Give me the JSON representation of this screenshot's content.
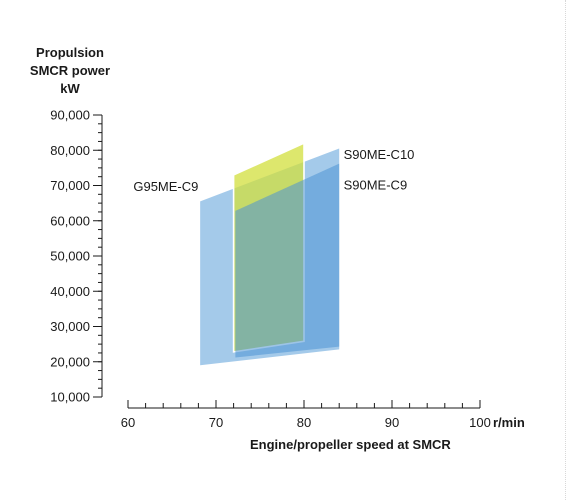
{
  "chart_data": {
    "type": "area",
    "ylabel_lines": [
      "Propulsion",
      "SMCR power",
      "kW"
    ],
    "xlabel": "Engine/propeller speed at SMCR",
    "x_unit": "r/min",
    "xlim": [
      60,
      100
    ],
    "ylim": [
      10000,
      90000
    ],
    "x_ticks": [
      60,
      70,
      80,
      90,
      100
    ],
    "x_tick_labels": [
      "60",
      "70",
      "80",
      "90",
      "100"
    ],
    "y_ticks": [
      10000,
      20000,
      30000,
      40000,
      50000,
      60000,
      70000,
      80000,
      90000
    ],
    "y_tick_labels": [
      "10,000",
      "20,000",
      "30,000",
      "40,000",
      "50,000",
      "60,000",
      "70,000",
      "80,000",
      "90,000"
    ],
    "y_minor_step": 2500,
    "grid": false,
    "series": [
      {
        "name": "G95ME-C9",
        "color": "#5a9fd8",
        "polygon": [
          [
            68.2,
            65500
          ],
          [
            84,
            80500
          ],
          [
            84,
            23500
          ],
          [
            68.2,
            19000
          ]
        ]
      },
      {
        "name": "S90ME-C10",
        "color": "#d2df3c",
        "polygon": [
          [
            72,
            73000
          ],
          [
            80,
            82000
          ],
          [
            80,
            25800
          ],
          [
            72,
            22800
          ]
        ]
      },
      {
        "name": "S90ME-C9",
        "color": "#4d94d4",
        "polygon": [
          [
            72.2,
            62800
          ],
          [
            84,
            76200
          ],
          [
            84,
            24300
          ],
          [
            72.2,
            21200
          ]
        ]
      }
    ],
    "labels": [
      {
        "text": "G95ME-C9",
        "x": 68,
        "y": 68500,
        "anchor": "end"
      },
      {
        "text": "S90ME-C10",
        "x": 84.5,
        "y": 77500,
        "anchor": "start"
      },
      {
        "text": "S90ME-C9",
        "x": 84.5,
        "y": 68800,
        "anchor": "start"
      }
    ]
  }
}
